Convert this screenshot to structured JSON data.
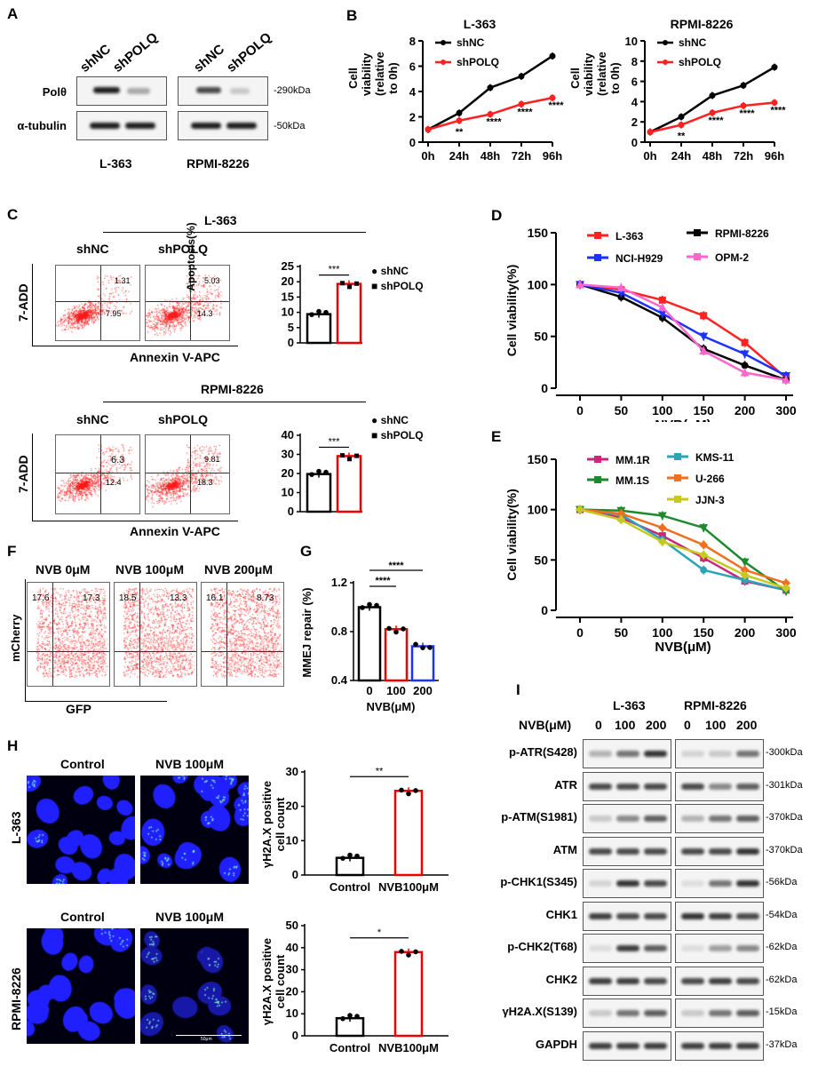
{
  "panels": {
    "A": "A",
    "B": "B",
    "C": "C",
    "D": "D",
    "E": "E",
    "F": "F",
    "G": "G",
    "H": "H",
    "I": "I"
  },
  "panelA": {
    "lanes": [
      "shNC",
      "shPOLQ"
    ],
    "rows": [
      {
        "name": "Polθ",
        "kda": "-290kDa"
      },
      {
        "name": "α-tubulin",
        "kda": "-50kDa"
      }
    ],
    "cells": [
      "L-363",
      "RPMI-8226"
    ]
  },
  "panelB": {
    "ylabel": "Cell viability\n(relative to 0h)",
    "legend": [
      "shNC",
      "shPOLQ"
    ],
    "colors": {
      "shNC": "#000000",
      "shPOLQ": "#ff2020"
    }
  },
  "panelC": {
    "cell1": "L-363",
    "cell2": "RPMI-8226",
    "groups": [
      "shNC",
      "shPOLQ"
    ],
    "yaxis": "7-ADD",
    "xaxis": "Annexin V-APC",
    "quads": {
      "l363_shNC": [
        "1.31",
        "7.95"
      ],
      "l363_shPOLQ": [
        "5.03",
        "14.3"
      ],
      "rpmi_shNC": [
        "6.3",
        "12.4"
      ],
      "rpmi_shPOLQ": [
        "9.81",
        "18.3"
      ]
    },
    "bar_ylabel": "Apoptosis(%)",
    "sig": "***",
    "legend": [
      "shNC",
      "shPOLQ"
    ]
  },
  "panelF": {
    "conds": [
      "NVB 0μM",
      "NVB 100μM",
      "NVB 200μM"
    ],
    "yaxis": "mCherry",
    "xaxis": "GFP",
    "quads": [
      [
        "17.6",
        "17.3"
      ],
      [
        "18.5",
        "13.3"
      ],
      [
        "16.1",
        "8.73"
      ]
    ]
  },
  "panelH": {
    "cols": [
      "Control",
      "NVB 100μM"
    ],
    "rows": [
      "L-363",
      "RPMI-8226"
    ],
    "ylabel": "γH2A.X positive\ncell count",
    "sig1": "**",
    "sig2": "*",
    "scalebar": "50μm"
  },
  "panelI": {
    "cells": [
      "L-363",
      "RPMI-8226"
    ],
    "nvb_label": "NVB(μM)",
    "doses": [
      "0",
      "100",
      "200"
    ],
    "rows": [
      {
        "name": "p-ATR(S428)",
        "kda": "-300kDa"
      },
      {
        "name": "ATR",
        "kda": "-301kDa"
      },
      {
        "name": "p-ATM(S1981)",
        "kda": "-370kDa"
      },
      {
        "name": "ATM",
        "kda": "-370kDa"
      },
      {
        "name": "p-CHK1(S345)",
        "kda": "-56kDa"
      },
      {
        "name": "CHK1",
        "kda": "-54kDa"
      },
      {
        "name": "p-CHK2(T68)",
        "kda": "-62kDa"
      },
      {
        "name": "CHK2",
        "kda": "-62kDa"
      },
      {
        "name": "γH2A.X(S139)",
        "kda": "-15kDa"
      },
      {
        "name": "GAPDH",
        "kda": "-37kDa"
      }
    ]
  },
  "chart_data": [
    {
      "id": "B1",
      "type": "line",
      "title": "L-363",
      "categories": [
        "0h",
        "24h",
        "48h",
        "72h",
        "96h"
      ],
      "ylabel": "Cell viability (relative to 0h)",
      "ylim": [
        0,
        8
      ],
      "yticks": [
        0,
        2,
        4,
        6,
        8
      ],
      "series": [
        {
          "name": "shNC",
          "values": [
            1,
            2.3,
            4.3,
            5.2,
            6.8
          ],
          "color": "#000000"
        },
        {
          "name": "shPOLQ",
          "values": [
            1,
            1.7,
            2.2,
            3.0,
            3.5
          ],
          "color": "#ff2020"
        }
      ],
      "sig": [
        "",
        "**",
        "****",
        "****",
        "****"
      ]
    },
    {
      "id": "B2",
      "type": "line",
      "title": "RPMI-8226",
      "categories": [
        "0h",
        "24h",
        "48h",
        "72h",
        "96h"
      ],
      "ylabel": "Cell viability (relative to 0h)",
      "ylim": [
        0,
        10
      ],
      "yticks": [
        0,
        2,
        4,
        6,
        8,
        10
      ],
      "series": [
        {
          "name": "shNC",
          "values": [
            1,
            2.5,
            4.6,
            5.6,
            7.4
          ],
          "color": "#000000"
        },
        {
          "name": "shPOLQ",
          "values": [
            1,
            1.7,
            2.9,
            3.6,
            3.9
          ],
          "color": "#ff2020"
        }
      ],
      "sig": [
        "",
        "**",
        "****",
        "****",
        "****"
      ]
    },
    {
      "id": "C1",
      "type": "bar",
      "categories": [
        "shNC",
        "shPOLQ"
      ],
      "values": [
        9.4,
        19.3
      ],
      "ylim": [
        0,
        25
      ],
      "yticks": [
        0,
        5,
        10,
        15,
        20,
        25
      ],
      "ylabel": "Apoptosis(%)"
    },
    {
      "id": "C2",
      "type": "bar",
      "categories": [
        "shNC",
        "shPOLQ"
      ],
      "values": [
        19.7,
        29.1
      ],
      "ylim": [
        0,
        40
      ],
      "yticks": [
        0,
        10,
        20,
        30,
        40
      ],
      "ylabel": "Apoptosis(%)"
    },
    {
      "id": "D",
      "type": "line",
      "xlabel": "NVB(μM)",
      "ylabel": "Cell viability(%)",
      "categories": [
        "0",
        "50",
        "100",
        "150",
        "200",
        "300"
      ],
      "ylim": [
        0,
        150
      ],
      "yticks": [
        0,
        50,
        100,
        150
      ],
      "series": [
        {
          "name": "L-363",
          "values": [
            100,
            95,
            85,
            70,
            44,
            10
          ],
          "color": "#ff2222"
        },
        {
          "name": "RPMI-8226",
          "values": [
            100,
            88,
            68,
            38,
            22,
            8
          ],
          "color": "#000000"
        },
        {
          "name": "NCI-H929",
          "values": [
            100,
            92,
            72,
            50,
            33,
            12
          ],
          "color": "#1a33ff"
        },
        {
          "name": "OPM-2",
          "values": [
            100,
            97,
            78,
            36,
            15,
            8
          ],
          "color": "#ff66cc"
        }
      ]
    },
    {
      "id": "E",
      "type": "line",
      "xlabel": "NVB(μM)",
      "ylabel": "Cell viability(%)",
      "categories": [
        "0",
        "50",
        "100",
        "150",
        "200",
        "300"
      ],
      "ylim": [
        0,
        150
      ],
      "yticks": [
        0,
        50,
        100,
        150
      ],
      "series": [
        {
          "name": "MM.1R",
          "values": [
            100,
            92,
            74,
            52,
            29,
            20
          ],
          "color": "#c8277a"
        },
        {
          "name": "KMS-11",
          "values": [
            100,
            95,
            70,
            40,
            30,
            20
          ],
          "color": "#2aa5b8"
        },
        {
          "name": "MM.1S",
          "values": [
            100,
            99,
            94,
            82,
            48,
            19
          ],
          "color": "#1e8a2e"
        },
        {
          "name": "U-266",
          "values": [
            100,
            96,
            82,
            65,
            40,
            27
          ],
          "color": "#f07020"
        },
        {
          "name": "JJN-3",
          "values": [
            100,
            90,
            68,
            55,
            35,
            22
          ],
          "color": "#c8c81e"
        }
      ]
    },
    {
      "id": "G",
      "type": "bar",
      "xlabel": "NVB(μM)",
      "ylabel": "MMEJ repair (%)",
      "categories": [
        "0",
        "100",
        "200"
      ],
      "values": [
        1.0,
        0.82,
        0.68
      ],
      "ylim": [
        0.4,
        1.2
      ],
      "yticks": [
        0.4,
        0.8,
        1.2
      ]
    },
    {
      "id": "H1",
      "type": "bar",
      "categories": [
        "Control",
        "NVB100μM"
      ],
      "values": [
        5,
        24.5
      ],
      "ylim": [
        0,
        30
      ],
      "yticks": [
        0,
        10,
        20,
        30
      ],
      "ylabel": "γH2A.X positive cell count"
    },
    {
      "id": "H2",
      "type": "bar",
      "categories": [
        "Control",
        "NVB100μM"
      ],
      "values": [
        8,
        38
      ],
      "ylim": [
        0,
        50
      ],
      "yticks": [
        0,
        10,
        20,
        30,
        40,
        50
      ],
      "ylabel": "γH2A.X positive cell count"
    }
  ]
}
